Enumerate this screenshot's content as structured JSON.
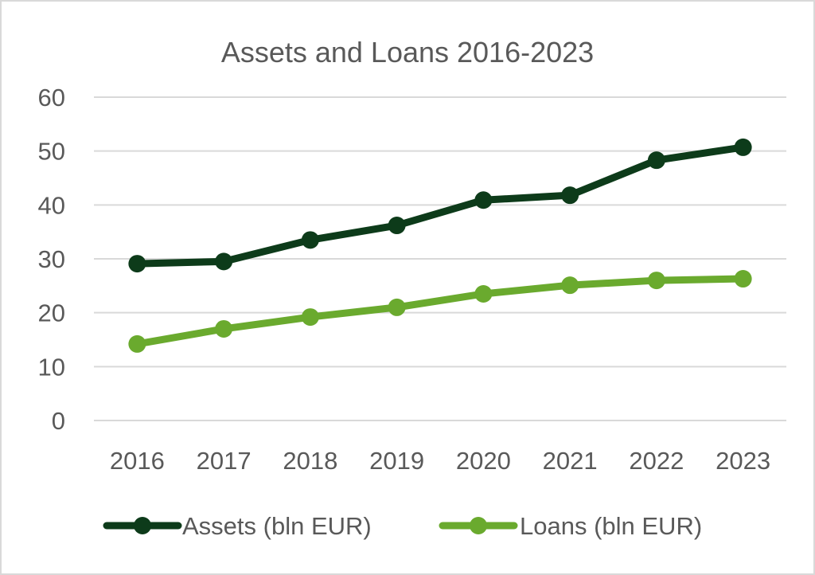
{
  "chart_data": {
    "type": "line",
    "title": "Assets and Loans 2016-2023",
    "xlabel": "",
    "ylabel": "",
    "categories": [
      "2016",
      "2017",
      "2018",
      "2019",
      "2020",
      "2021",
      "2022",
      "2023"
    ],
    "ylim": [
      0,
      60
    ],
    "yticks": [
      "0",
      "10",
      "20",
      "30",
      "40",
      "50",
      "60"
    ],
    "grid": true,
    "legend": "bottom",
    "series": [
      {
        "name": "Assets (bln EUR)",
        "values": [
          29.1,
          29.5,
          33.5,
          36.2,
          40.9,
          41.8,
          48.3,
          50.7
        ],
        "color": "#0d3b1a"
      },
      {
        "name": "Loans (bln EUR)",
        "values": [
          14.2,
          17.0,
          19.2,
          21.0,
          23.5,
          25.1,
          26.0,
          26.3
        ],
        "color": "#6aaa2e"
      }
    ]
  }
}
